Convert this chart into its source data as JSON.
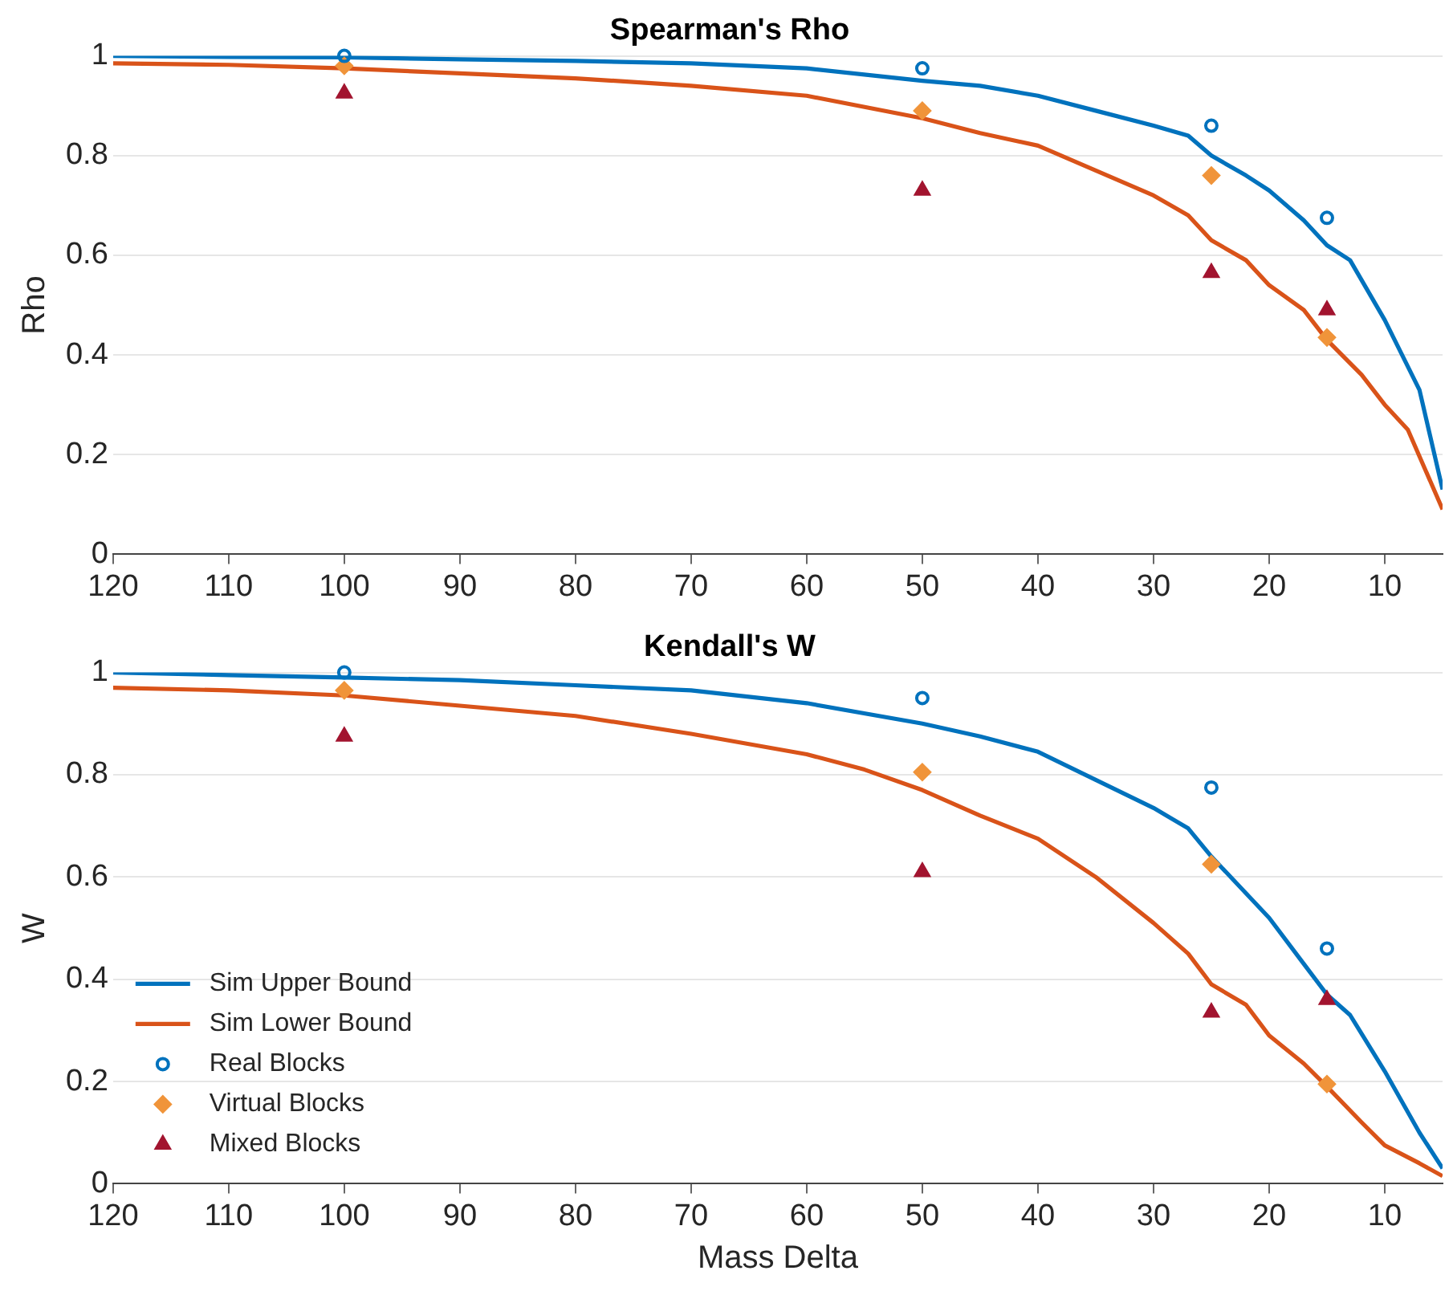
{
  "chart_data": [
    {
      "type": "line",
      "title": "Spearman's Rho",
      "ylabel": "Rho",
      "xlim": [
        120,
        5
      ],
      "xticks": [
        120,
        110,
        100,
        90,
        80,
        70,
        60,
        50,
        40,
        30,
        20,
        10
      ],
      "ylim": [
        0,
        1
      ],
      "yticks": [
        0,
        0.2,
        0.4,
        0.6,
        0.8,
        1
      ],
      "grid": "y",
      "legend": false,
      "series": [
        {
          "type": "line",
          "color": "#0072bd",
          "marker": "none",
          "x": [
            120,
            110,
            100,
            90,
            80,
            70,
            60,
            50,
            45,
            40,
            35,
            30,
            27,
            25,
            22,
            20,
            17,
            15,
            13,
            10,
            7,
            5
          ],
          "values": [
            1.0,
            0.998,
            0.997,
            0.993,
            0.99,
            0.985,
            0.975,
            0.95,
            0.94,
            0.92,
            0.89,
            0.86,
            0.84,
            0.8,
            0.76,
            0.73,
            0.67,
            0.62,
            0.59,
            0.47,
            0.33,
            0.13
          ]
        },
        {
          "type": "line",
          "color": "#d95319",
          "marker": "none",
          "x": [
            120,
            110,
            100,
            90,
            80,
            70,
            60,
            50,
            45,
            40,
            35,
            30,
            27,
            25,
            22,
            20,
            17,
            15,
            12,
            10,
            8,
            5
          ],
          "values": [
            0.985,
            0.982,
            0.975,
            0.965,
            0.955,
            0.94,
            0.92,
            0.875,
            0.845,
            0.82,
            0.77,
            0.72,
            0.68,
            0.63,
            0.59,
            0.54,
            0.49,
            0.43,
            0.36,
            0.3,
            0.25,
            0.09
          ]
        },
        {
          "type": "scatter",
          "color": "#0072bd",
          "marker": "circle",
          "x": [
            100,
            50,
            25,
            15
          ],
          "values": [
            1.0,
            0.975,
            0.86,
            0.675
          ]
        },
        {
          "type": "scatter",
          "color": "#f0943a",
          "marker": "diamond",
          "x": [
            100,
            50,
            25,
            15
          ],
          "values": [
            0.98,
            0.89,
            0.76,
            0.435
          ]
        },
        {
          "type": "scatter",
          "color": "#a2142f",
          "marker": "triangle",
          "x": [
            100,
            50,
            25,
            15
          ],
          "values": [
            0.925,
            0.73,
            0.565,
            0.49
          ]
        }
      ]
    },
    {
      "type": "line",
      "title": "Kendall's W",
      "ylabel": "W",
      "xlabel": "Mass Delta",
      "xlim": [
        120,
        5
      ],
      "xticks": [
        120,
        110,
        100,
        90,
        80,
        70,
        60,
        50,
        40,
        30,
        20,
        10
      ],
      "ylim": [
        0,
        1
      ],
      "yticks": [
        0,
        0.2,
        0.4,
        0.6,
        0.8,
        1
      ],
      "grid": "y",
      "legend": "bottom left",
      "series": [
        {
          "type": "line",
          "name": "Sim Upper Bound",
          "color": "#0072bd",
          "marker": "none",
          "x": [
            120,
            110,
            100,
            90,
            80,
            70,
            60,
            50,
            45,
            40,
            35,
            30,
            27,
            25,
            20,
            17,
            15,
            13,
            10,
            7,
            5
          ],
          "values": [
            1.0,
            0.995,
            0.99,
            0.985,
            0.975,
            0.965,
            0.94,
            0.9,
            0.875,
            0.845,
            0.79,
            0.735,
            0.695,
            0.64,
            0.52,
            0.43,
            0.37,
            0.33,
            0.22,
            0.1,
            0.03
          ]
        },
        {
          "type": "line",
          "name": "Sim Lower Bound",
          "color": "#d95319",
          "marker": "none",
          "x": [
            120,
            110,
            100,
            90,
            80,
            70,
            60,
            55,
            50,
            45,
            40,
            35,
            30,
            27,
            25,
            22,
            20,
            17,
            15,
            12,
            10,
            7,
            5
          ],
          "values": [
            0.97,
            0.965,
            0.955,
            0.935,
            0.915,
            0.88,
            0.84,
            0.81,
            0.77,
            0.72,
            0.675,
            0.6,
            0.51,
            0.45,
            0.39,
            0.35,
            0.29,
            0.235,
            0.19,
            0.12,
            0.075,
            0.04,
            0.015
          ]
        },
        {
          "type": "scatter",
          "name": "Real Blocks",
          "color": "#0072bd",
          "marker": "circle",
          "x": [
            100,
            50,
            25,
            15
          ],
          "values": [
            1.0,
            0.95,
            0.775,
            0.46
          ]
        },
        {
          "type": "scatter",
          "name": "Virtual Blocks",
          "color": "#f0943a",
          "marker": "diamond",
          "x": [
            100,
            50,
            25,
            15
          ],
          "values": [
            0.965,
            0.805,
            0.625,
            0.195
          ]
        },
        {
          "type": "scatter",
          "name": "Mixed Blocks",
          "color": "#a2142f",
          "marker": "triangle",
          "x": [
            100,
            50,
            25,
            15
          ],
          "values": [
            0.875,
            0.61,
            0.335,
            0.36
          ]
        }
      ]
    }
  ]
}
